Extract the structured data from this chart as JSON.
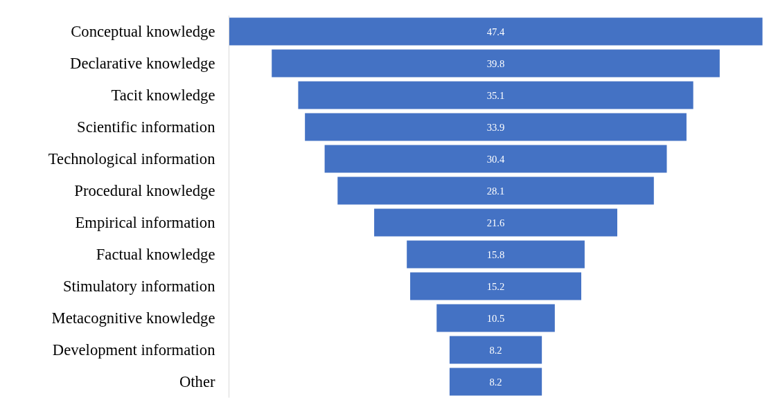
{
  "chart_data": {
    "type": "other",
    "categories": [
      "Conceptual knowledge",
      "Declarative knowledge",
      "Tacit knowledge",
      "Scientific information",
      "Technological information",
      "Procedural knowledge",
      "Empirical information",
      "Factual knowledge",
      "Stimulatory information",
      "Metacognitive knowledge",
      "Development information",
      "Other"
    ],
    "values": [
      47.4,
      39.8,
      35.1,
      33.9,
      30.4,
      28.1,
      21.6,
      15.8,
      15.2,
      10.5,
      8.2,
      8.2
    ],
    "color": "#4472c4",
    "data_labels": true
  }
}
